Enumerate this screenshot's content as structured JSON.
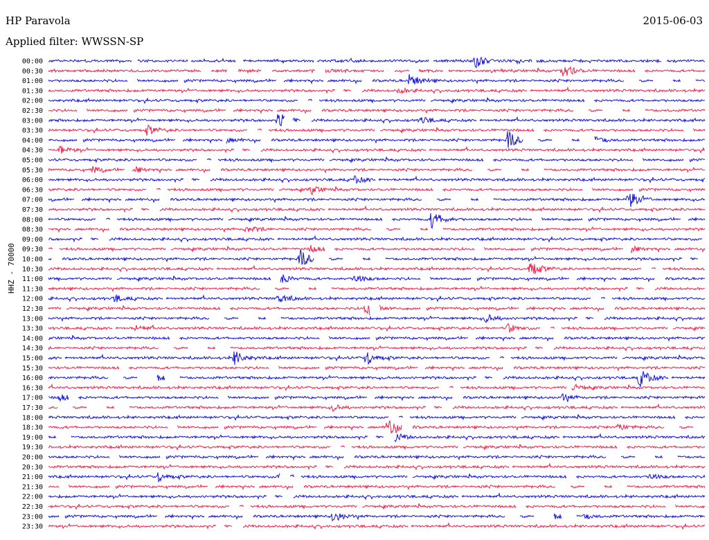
{
  "header": {
    "station": "HP Paravola",
    "date": "2015-06-03",
    "filter": "Applied filter: WWSSN-SP",
    "channel": "HHZ - 70000"
  },
  "colors": {
    "trace_a": "#1010e0",
    "trace_b": "#f0204a",
    "text": "#000000"
  },
  "chart_data": {
    "type": "line",
    "kind": "helicorder",
    "row_interval_minutes": 30,
    "ylabel": "HHZ - 70000",
    "rows": [
      "00:00",
      "00:30",
      "01:00",
      "01:30",
      "02:00",
      "02:30",
      "03:00",
      "03:30",
      "04:00",
      "04:30",
      "05:00",
      "05:30",
      "06:00",
      "06:30",
      "07:00",
      "07:30",
      "08:00",
      "08:30",
      "09:00",
      "09:30",
      "10:00",
      "10:30",
      "11:00",
      "11:30",
      "12:00",
      "12:30",
      "13:00",
      "13:30",
      "14:00",
      "14:30",
      "15:00",
      "15:30",
      "16:00",
      "16:30",
      "17:00",
      "17:30",
      "18:00",
      "18:30",
      "19:00",
      "19:30",
      "20:00",
      "20:30",
      "21:00",
      "21:30",
      "22:00",
      "22:30",
      "23:00",
      "23:30"
    ],
    "series_colors": [
      "#1010e0",
      "#f0204a"
    ],
    "grid": false,
    "events": [
      {
        "row": "00:00",
        "minute": 19.5,
        "amplitude": 10
      },
      {
        "row": "00:30",
        "minute": 23.5,
        "amplitude": 12
      },
      {
        "row": "00:30",
        "minute": 12.5,
        "amplitude": 4
      },
      {
        "row": "01:00",
        "minute": 16.5,
        "amplitude": 10
      },
      {
        "row": "01:30",
        "minute": 16,
        "amplitude": 4
      },
      {
        "row": "03:00",
        "minute": 10.5,
        "amplitude": 12
      },
      {
        "row": "03:00",
        "minute": 17,
        "amplitude": 5
      },
      {
        "row": "03:30",
        "minute": 4.5,
        "amplitude": 7
      },
      {
        "row": "04:00",
        "minute": 21,
        "amplitude": 14
      },
      {
        "row": "04:00",
        "minute": 25,
        "amplitude": 6
      },
      {
        "row": "04:00",
        "minute": 8,
        "amplitude": 5
      },
      {
        "row": "04:30",
        "minute": 0.5,
        "amplitude": 6
      },
      {
        "row": "05:30",
        "minute": 2,
        "amplitude": 5
      },
      {
        "row": "05:30",
        "minute": 4,
        "amplitude": 4
      },
      {
        "row": "06:00",
        "minute": 14,
        "amplitude": 5
      },
      {
        "row": "06:30",
        "minute": 12,
        "amplitude": 6
      },
      {
        "row": "07:00",
        "minute": 26.5,
        "amplitude": 14
      },
      {
        "row": "08:00",
        "minute": 17.5,
        "amplitude": 14
      },
      {
        "row": "08:30",
        "minute": 9,
        "amplitude": 6
      },
      {
        "row": "09:30",
        "minute": 12,
        "amplitude": 5
      },
      {
        "row": "09:30",
        "minute": 26.5,
        "amplitude": 6
      },
      {
        "row": "10:00",
        "minute": 11.5,
        "amplitude": 14
      },
      {
        "row": "10:30",
        "minute": 22,
        "amplitude": 12
      },
      {
        "row": "11:00",
        "minute": 10.5,
        "amplitude": 10
      },
      {
        "row": "11:00",
        "minute": 14,
        "amplitude": 7
      },
      {
        "row": "12:00",
        "minute": 10.5,
        "amplitude": 7
      },
      {
        "row": "12:00",
        "minute": 3,
        "amplitude": 5
      },
      {
        "row": "12:30",
        "minute": 14.5,
        "amplitude": 14
      },
      {
        "row": "13:00",
        "minute": 20,
        "amplitude": 6
      },
      {
        "row": "13:30",
        "minute": 21,
        "amplitude": 6
      },
      {
        "row": "13:30",
        "minute": 4,
        "amplitude": 4
      },
      {
        "row": "15:00",
        "minute": 8.5,
        "amplitude": 11
      },
      {
        "row": "15:00",
        "minute": 14.5,
        "amplitude": 10
      },
      {
        "row": "16:00",
        "minute": 27,
        "amplitude": 14
      },
      {
        "row": "16:00",
        "minute": 5,
        "amplitude": 4
      },
      {
        "row": "16:30",
        "minute": 24,
        "amplitude": 5
      },
      {
        "row": "17:00",
        "minute": 0.5,
        "amplitude": 5
      },
      {
        "row": "17:00",
        "minute": 23.5,
        "amplitude": 5
      },
      {
        "row": "17:30",
        "minute": 13,
        "amplitude": 4
      },
      {
        "row": "18:30",
        "minute": 15.5,
        "amplitude": 14
      },
      {
        "row": "18:30",
        "minute": 26,
        "amplitude": 5
      },
      {
        "row": "19:00",
        "minute": 15.5,
        "amplitude": 14
      },
      {
        "row": "21:00",
        "minute": 5,
        "amplitude": 6
      },
      {
        "row": "21:00",
        "minute": 10.5,
        "amplitude": 6
      },
      {
        "row": "21:00",
        "minute": 27.5,
        "amplitude": 5
      },
      {
        "row": "23:00",
        "minute": 13,
        "amplitude": 8
      },
      {
        "row": "23:00",
        "minute": 23,
        "amplitude": 5
      },
      {
        "row": "23:00",
        "minute": 24.5,
        "amplitude": 4
      }
    ]
  }
}
